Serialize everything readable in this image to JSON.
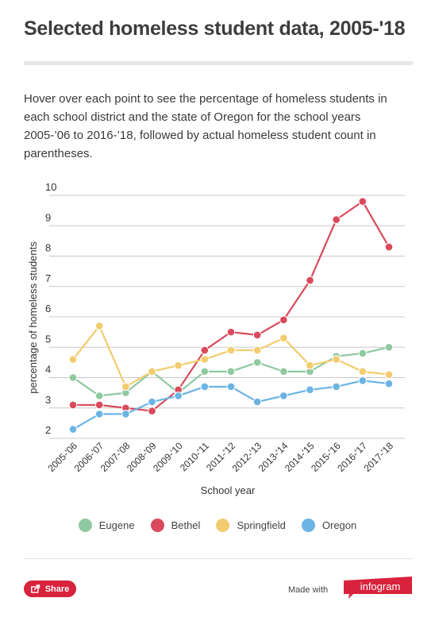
{
  "title": "Selected homeless student data, 2005-'18",
  "description": "Hover over each point to see the percentage of homeless students in each school district and the state of Oregon for the school years 2005-’06 to 2016-’18, followed by actual homeless student count in parentheses.",
  "colors": {
    "eugene": "#8fc9a0",
    "bethel": "#d94a5c",
    "springfield": "#f2cc6e",
    "oregon": "#6bb4e4",
    "accent": "#d9223c"
  },
  "chart_data": {
    "type": "line",
    "xlabel": "School year",
    "ylabel": "percentage of homeless students",
    "ylim": [
      2,
      10
    ],
    "yticks": [
      2,
      3,
      4,
      5,
      6,
      7,
      8,
      9,
      10
    ],
    "grid": true,
    "legend_position": "bottom",
    "categories": [
      "2005-'06",
      "2006-'07",
      "2007-'08",
      "2008-'09",
      "2009-'10",
      "2010-'11",
      "2011-'12",
      "2012-'13",
      "2013-'14",
      "2014-'15",
      "2015-'16",
      "2016-'17",
      "2017-'18"
    ],
    "series": [
      {
        "name": "Eugene",
        "color": "#8fc9a0",
        "values": [
          4.0,
          3.4,
          3.5,
          4.2,
          3.5,
          4.2,
          4.2,
          4.5,
          4.2,
          4.2,
          4.7,
          4.8,
          5.0
        ]
      },
      {
        "name": "Bethel",
        "color": "#d94a5c",
        "values": [
          3.1,
          3.1,
          3.0,
          2.9,
          3.6,
          4.9,
          5.5,
          5.4,
          5.9,
          7.2,
          9.2,
          9.8,
          8.3
        ]
      },
      {
        "name": "Springfield",
        "color": "#f2cc6e",
        "values": [
          4.6,
          5.7,
          3.7,
          4.2,
          4.4,
          4.6,
          4.9,
          4.9,
          5.3,
          4.4,
          4.6,
          4.2,
          4.1
        ]
      },
      {
        "name": "Oregon",
        "color": "#6bb4e4",
        "values": [
          2.3,
          2.8,
          2.8,
          3.2,
          3.4,
          3.7,
          3.7,
          3.2,
          3.4,
          3.6,
          3.7,
          3.9,
          3.8
        ]
      }
    ]
  },
  "footer": {
    "share_label": "Share",
    "share_icon": "share-icon",
    "made_with": "Made with",
    "brand": "infogram"
  }
}
